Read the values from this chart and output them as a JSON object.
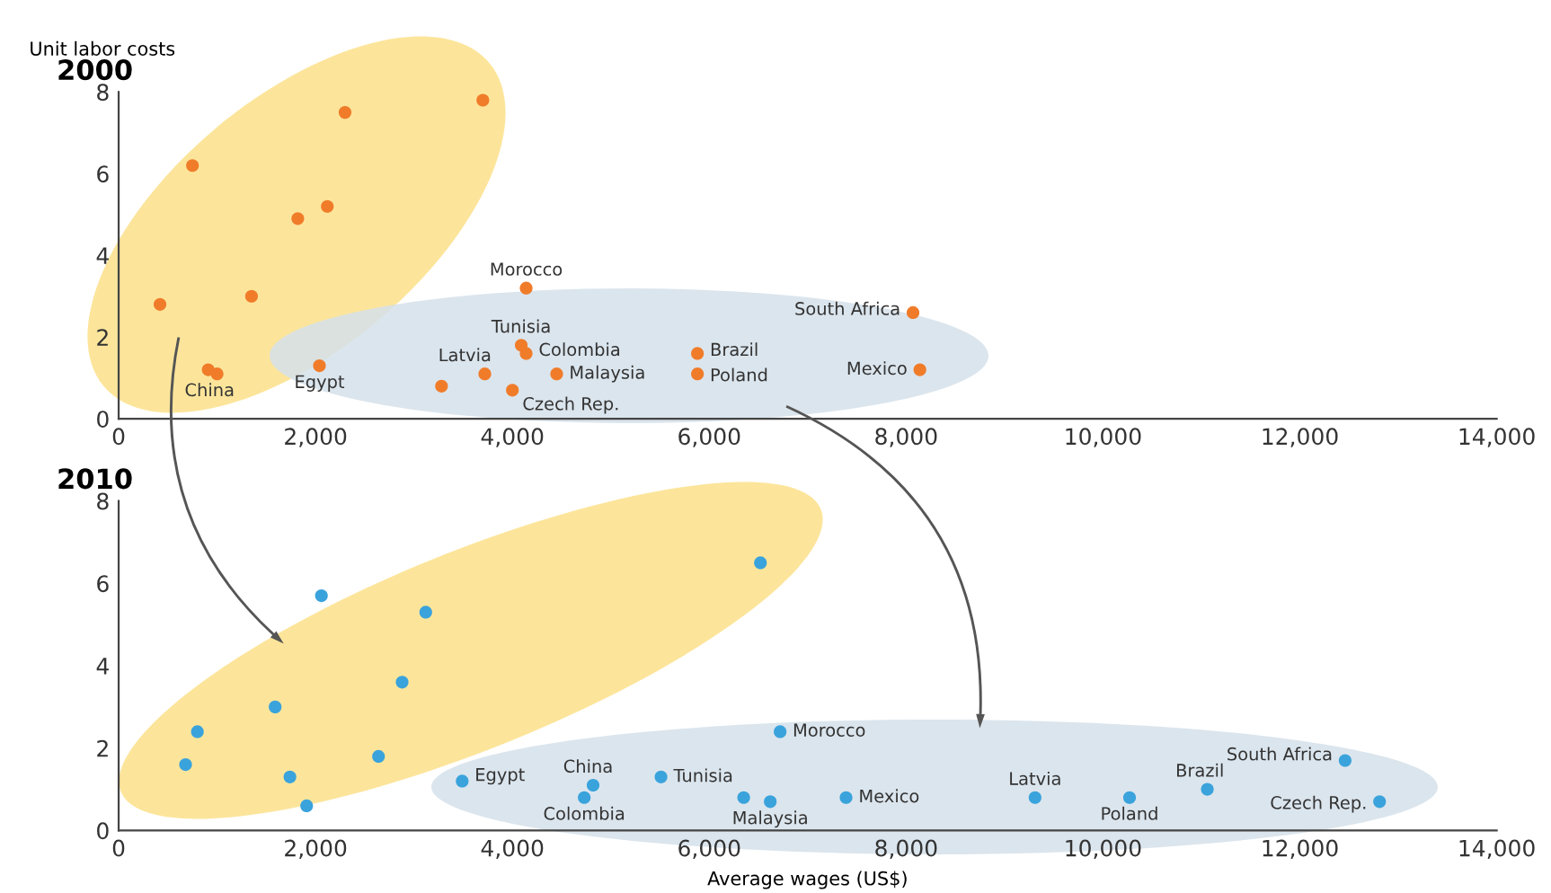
{
  "chart_data": [
    {
      "type": "scatter",
      "title": "2000",
      "ylabel": "Unit labor costs",
      "marker": "circle",
      "grid": false,
      "xlim": [
        0,
        14000
      ],
      "xticks": [
        0,
        {
          "value": 2000,
          "label": "2,000"
        },
        {
          "value": 4000,
          "label": "4,000"
        },
        {
          "value": 6000,
          "label": "6,000"
        },
        {
          "value": 8000,
          "label": "8,000"
        },
        {
          "value": 10000,
          "label": "10,000"
        },
        {
          "value": 12000,
          "label": "12,000"
        },
        {
          "value": 14000,
          "label": "14,000"
        }
      ],
      "ylim": [
        0,
        8
      ],
      "yticks": [
        0,
        2,
        4,
        6,
        8
      ],
      "series": [
        {
          "color": "#f07c2a",
          "x": [
            420,
            750,
            1350,
            2300,
            1820,
            2120,
            3700,
            910,
            1000,
            2040,
            3280,
            3720,
            4000,
            4090,
            4140,
            4450,
            4140,
            5880,
            5880,
            8070,
            8140
          ],
          "values": [
            2.8,
            6.2,
            3.0,
            7.5,
            4.9,
            5.2,
            7.8,
            1.2,
            1.1,
            1.3,
            0.8,
            1.1,
            0.7,
            1.8,
            1.6,
            1.1,
            3.2,
            1.6,
            1.1,
            2.6,
            1.2
          ]
        }
      ],
      "annotations": [
        {
          "text": "China",
          "x": 1000,
          "y": 1.1
        },
        {
          "text": "Egypt",
          "x": 2040,
          "y": 1.3
        },
        {
          "text": "Latvia",
          "x": 3720,
          "y": 1.1
        },
        {
          "text": "Czech Rep.",
          "x": 4000,
          "y": 0.7
        },
        {
          "text": "Tunisia",
          "x": 4090,
          "y": 1.8
        },
        {
          "text": "Colombia",
          "x": 4140,
          "y": 1.6
        },
        {
          "text": "Malaysia",
          "x": 4450,
          "y": 1.1
        },
        {
          "text": "Morocco",
          "x": 4140,
          "y": 3.2
        },
        {
          "text": "Brazil",
          "x": 5880,
          "y": 1.6
        },
        {
          "text": "Poland",
          "x": 5880,
          "y": 1.1
        },
        {
          "text": "South Africa",
          "x": 8070,
          "y": 2.6
        },
        {
          "text": "Mexico",
          "x": 8140,
          "y": 1.2
        }
      ]
    },
    {
      "type": "scatter",
      "title": "2010",
      "xlabel": "Average wages (US$)",
      "marker": "circle",
      "grid": false,
      "xlim": [
        0,
        14000
      ],
      "xticks": [
        0,
        {
          "value": 2000,
          "label": "2,000"
        },
        {
          "value": 4000,
          "label": "4,000"
        },
        {
          "value": 6000,
          "label": "6,000"
        },
        {
          "value": 8000,
          "label": "8,000"
        },
        {
          "value": 10000,
          "label": "10,000"
        },
        {
          "value": 12000,
          "label": "12,000"
        },
        {
          "value": 14000,
          "label": "14,000"
        }
      ],
      "ylim": [
        0,
        8
      ],
      "yticks": [
        0,
        2,
        4,
        6,
        8
      ],
      "series": [
        {
          "color": "#3aa3dc",
          "x": [
            2060,
            3120,
            6520,
            2880,
            1590,
            800,
            680,
            2640,
            1740,
            1910,
            3490,
            4820,
            4730,
            5510,
            6720,
            6620,
            6350,
            7390,
            9310,
            10270,
            11060,
            12460,
            12810
          ],
          "values": [
            5.7,
            5.3,
            6.5,
            3.6,
            3.0,
            2.4,
            1.6,
            1.8,
            1.3,
            0.6,
            1.2,
            1.1,
            0.8,
            1.3,
            2.4,
            0.7,
            0.8,
            0.8,
            0.8,
            0.8,
            1.0,
            1.7,
            0.7
          ]
        }
      ],
      "annotations": [
        {
          "text": "Egypt",
          "x": 3490,
          "y": 1.2
        },
        {
          "text": "China",
          "x": 4820,
          "y": 1.1
        },
        {
          "text": "Colombia",
          "x": 4730,
          "y": 0.8
        },
        {
          "text": "Tunisia",
          "x": 5510,
          "y": 1.3
        },
        {
          "text": "Morocco",
          "x": 6720,
          "y": 2.4
        },
        {
          "text": "Malaysia",
          "x": 6620,
          "y": 0.7
        },
        {
          "text": "Mexico",
          "x": 7390,
          "y": 0.8
        },
        {
          "text": "Latvia",
          "x": 9310,
          "y": 0.8
        },
        {
          "text": "Poland",
          "x": 10270,
          "y": 0.8
        },
        {
          "text": "Brazil",
          "x": 11060,
          "y": 1.0
        },
        {
          "text": "South Africa",
          "x": 12460,
          "y": 1.7
        },
        {
          "text": "Czech Rep.",
          "x": 12810,
          "y": 0.7
        }
      ]
    }
  ]
}
